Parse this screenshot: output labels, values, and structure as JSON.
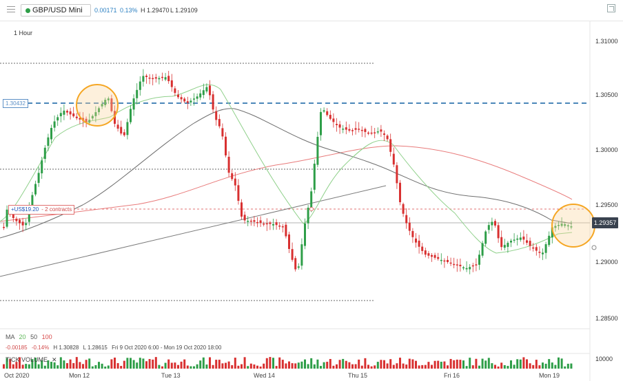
{
  "header": {
    "symbol": "GBP/USD Mini",
    "change": "0.00171",
    "change_pct": "0.13%",
    "high": "H 1.29470",
    "low": "L 1.29109"
  },
  "timeframe": "1 Hour",
  "price_axis": [
    "1.31000",
    "1.30500",
    "1.30000",
    "1.29500",
    "1.29000",
    "1.28500"
  ],
  "current_price": "1.29357",
  "level_tag": "1.30432",
  "position": {
    "price": "+US$19.20",
    "contracts": "- 2 contracts"
  },
  "time_axis": [
    "Oct 2020",
    "Mon 12",
    "Tue 13",
    "Wed 14",
    "Thu 15",
    "Fri 16",
    "Mon 19"
  ],
  "ma_legend": {
    "label": "MA",
    "p20": "20",
    "p50": "50",
    "p100": "100"
  },
  "info_line": {
    "change": "-0.00185",
    "change_pct": "-0.14%",
    "high": "H 1.30828",
    "low": "L 1.28615",
    "range": "Fri 9 Oct 2020 6:00 - Mon 19 Oct 2020 18:00"
  },
  "volume": {
    "label": "TICK VOLUME",
    "scale": "10000"
  },
  "colors": {
    "up": "#2e9e48",
    "down": "#d83030",
    "ma20": "#8fd08a",
    "ma50": "#6e6e6e",
    "ma100": "#e87a7a",
    "dashed_level": "#4a86b8",
    "highlight": "#f5a623"
  }
}
